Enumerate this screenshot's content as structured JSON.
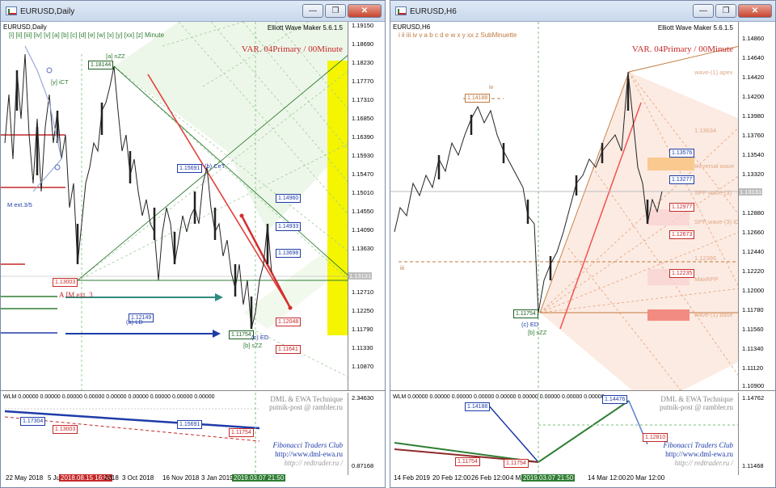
{
  "left": {
    "title": "EURUSD,Daily",
    "symbol_label": "EURUSD,Daily",
    "wave_bar": "[i]  [ii]  [iii]  [iv]  [v]  [a]  [b]  [c]  [d]  [e]  [w]  [x]  [y]  [xx]  [z]   Minute",
    "plugin": "Elliott Wave Maker 5.6.1.5",
    "variant": "VAR. 04Primary / 00Minute",
    "prices": [
      "1.19150",
      "1.18690",
      "1.18230",
      "1.17770",
      "1.17310",
      "1.16850",
      "1.16390",
      "1.15930",
      "1.15470",
      "1.15010",
      "1.14550",
      "1.14090",
      "1.13630",
      "1.13170",
      "1.12710",
      "1.12250",
      "1.11790",
      "1.11330",
      "1.10870"
    ],
    "current_price": "1.13131",
    "tags": {
      "t118144": "1.18144",
      "t115691": "1.15691",
      "t114960": "1.14960",
      "t114933": "1.14933",
      "t113698": "1.13698",
      "t113003": "1.13003",
      "t112149": "1.12149",
      "t111754": "1.11754",
      "t112048": "1.12048",
      "t111641": "1.11641"
    },
    "labels": {
      "a_nzz": "[a] nZZ",
      "a_im": "A IM ext. 3",
      "ld": "(a) LD",
      "b_szz": "[b] sZZ",
      "ce": "(c) ED",
      "mext": "M ext.3/5",
      "ict": "[y] iCT",
      "cet": "(b) CeT"
    },
    "sub": {
      "header": "WLM 0.00000  0.00000  0.00000  0.00000  0.00000  0.00000  0.00000  0.00000  0.00000",
      "prices": [
        "2.34630",
        "0.87168"
      ],
      "tags": {
        "t1": "1.17304",
        "t2": "1.13003",
        "t3": "1.15691",
        "t4": "1.11754"
      }
    },
    "dates": [
      "22 May 2018",
      "5 Jul",
      "2018.08.15 16:55",
      "2018",
      "3 Oct 2018",
      "16 Nov 2018",
      "3 Jan 2019",
      "2019.03.07 21:50"
    ]
  },
  "right": {
    "title": "EURUSD,H6",
    "symbol_label": "EURUSD,H6",
    "wave_bar": "i    ii    iii    iv    v    a    b    c    d    e    w    x    y    xx    z    SubMinuette",
    "plugin": "Elliott Wave Maker 5.6.1.5",
    "variant": "VAR. 04Primary / 00Minute",
    "prices": [
      "1.14860",
      "1.14640",
      "1.14420",
      "1.14200",
      "1.13980",
      "1.13760",
      "1.13540",
      "1.13320",
      "1.13100",
      "1.12880",
      "1.12660",
      "1.12440",
      "1.12220",
      "1.12000",
      "1.11780",
      "1.11560",
      "1.11340",
      "1.11120",
      "1.10900"
    ],
    "current_price": "1.13131",
    "tags": {
      "t114188": "1.14188",
      "t113576": "1.13576",
      "t113277": "1.13277",
      "t112977": "1.12977",
      "t112673": "1.12673",
      "t112235": "1.12235",
      "t111754": "1.11754"
    },
    "labels": {
      "iv": "iv",
      "iii": "iii",
      "ed": "(c) ED",
      "b_szz": "[b] sZZ",
      "w1": "wave-(1) apex",
      "w2": "1.13634",
      "w3": "Reversal wave",
      "w4": "SPP wave-(3)",
      "w5": "SPP wave-(3) iD",
      "w6": "1.12396",
      "w7": "MaxRPP",
      "w8": "wave-(1) base"
    },
    "sub": {
      "header": "WLM 0.00000  0.00000  0.00000  0.00000  0.00000  0.00000  0.00000  0.00000  0.00000",
      "prices": [
        "1.14762",
        "1.11468"
      ],
      "tags": {
        "t1": "1.14188",
        "t2": "1.14476",
        "t3": "1.12810",
        "t4": "1.11754",
        "t5": "1.11754"
      }
    },
    "dates": [
      "14 Feb 2019",
      "20 Feb 12:00",
      "26 Feb 12:00",
      "4 Mar",
      "2019.03.07 21:50",
      "14 Mar 12:00",
      "20 Mar 12:00"
    ]
  },
  "brand": {
    "line1": "DML & EWA Technique",
    "line2": "putnik-post @ rambler.ru",
    "club": "Fibonacci   Traders   Club",
    "url1": "http://www.dml-ewa.ru",
    "url2": "http:// redtrader.ru /"
  },
  "window_buttons": {
    "minimize": "—",
    "maximize": "❐",
    "close": "✕"
  },
  "colors": {
    "bull": "#2e7d32",
    "bear": "#c62828",
    "accent_blue": "#1e3ca8",
    "fan_orange": "#c0783c",
    "yellow_zone": "#f5f500"
  }
}
